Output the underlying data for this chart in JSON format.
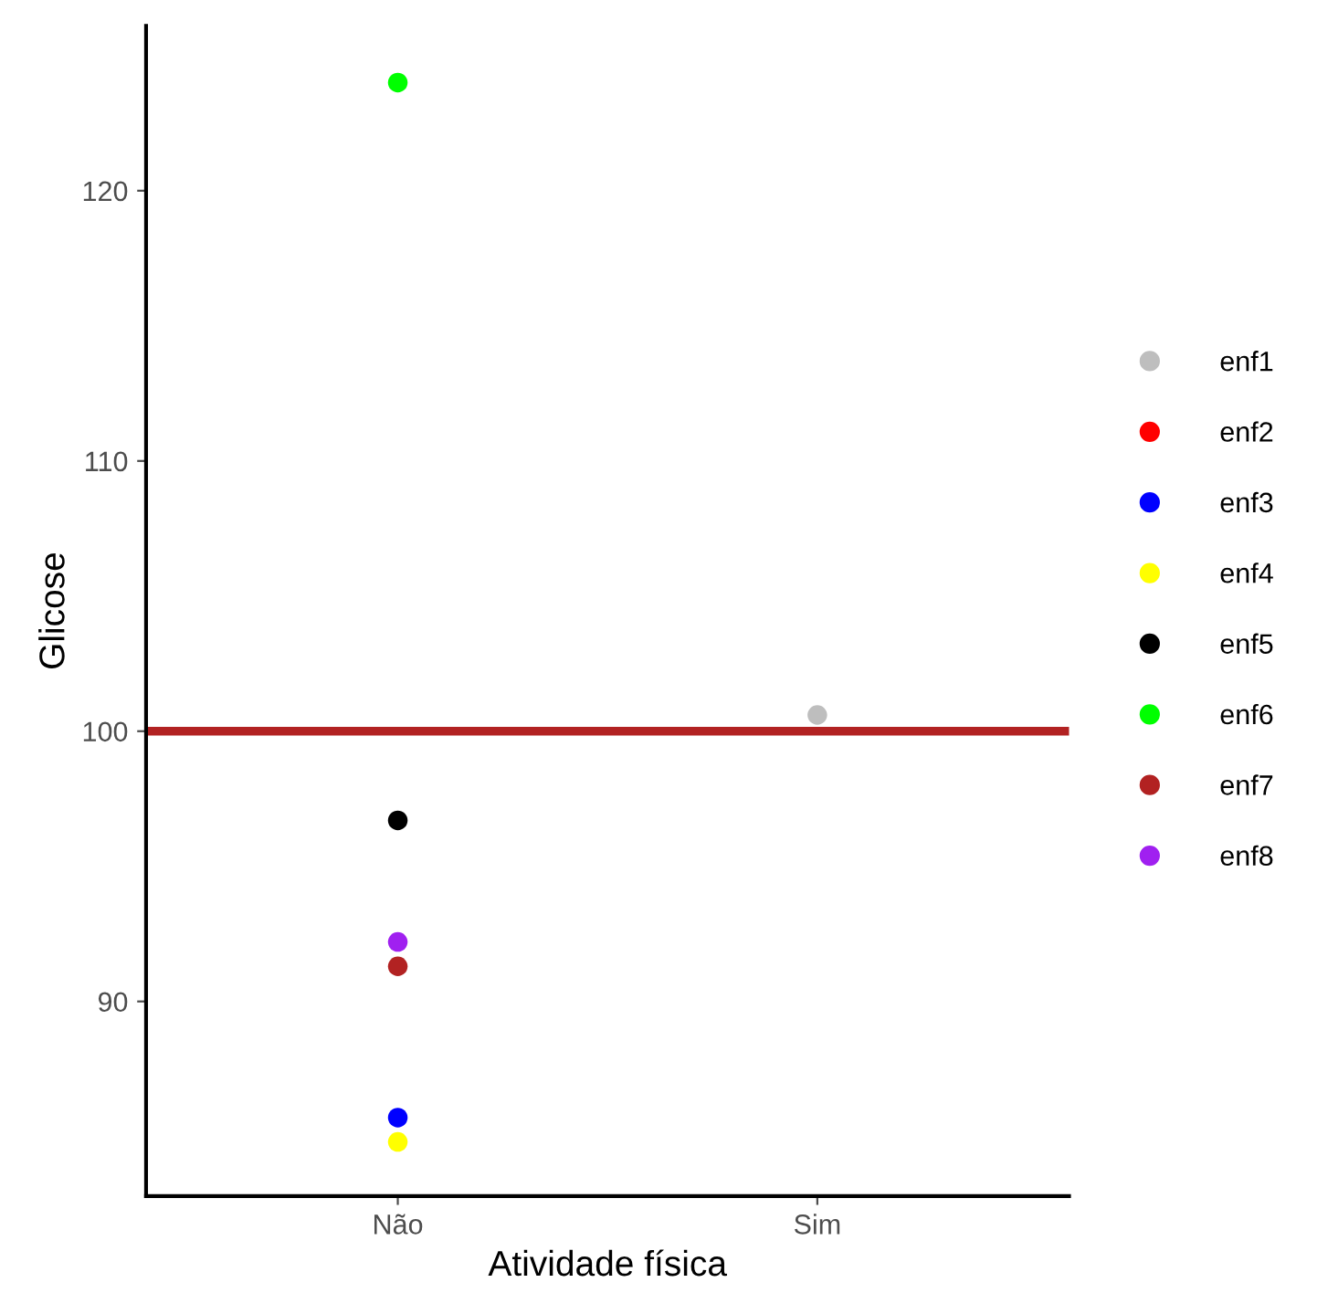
{
  "chart_data": {
    "type": "scatter",
    "xlabel": "Atividade física",
    "ylabel": "Glicose",
    "categories": [
      "Não",
      "Sim"
    ],
    "ylim": [
      82.8,
      126.1
    ],
    "yticks": [
      90,
      100,
      110,
      120
    ],
    "grid": false,
    "legend": "right",
    "marker": "circle",
    "series": [
      {
        "name": "enf1",
        "color": "#bebebe",
        "x": [
          "Sim"
        ],
        "values": [
          100.6
        ]
      },
      {
        "name": "enf2",
        "color": "#ff0000",
        "x": [
          "Não"
        ],
        "values": [
          null
        ]
      },
      {
        "name": "enf3",
        "color": "#0000ff",
        "x": [
          "Não"
        ],
        "values": [
          85.7
        ]
      },
      {
        "name": "enf4",
        "color": "#ffff00",
        "x": [
          "Não"
        ],
        "values": [
          84.8
        ]
      },
      {
        "name": "enf5",
        "color": "#000000",
        "x": [
          "Não"
        ],
        "values": [
          96.7
        ]
      },
      {
        "name": "enf6",
        "color": "#00ff00",
        "x": [
          "Não"
        ],
        "values": [
          124.0
        ]
      },
      {
        "name": "enf7",
        "color": "#b22222",
        "x": [
          "Não"
        ],
        "values": [
          91.3
        ]
      },
      {
        "name": "enf8",
        "color": "#a020f0",
        "x": [
          "Não"
        ],
        "values": [
          92.2
        ]
      }
    ],
    "ref_lines": [
      {
        "axis": "y",
        "value": 100,
        "color": "#b22222",
        "line_style": "solid"
      }
    ]
  }
}
